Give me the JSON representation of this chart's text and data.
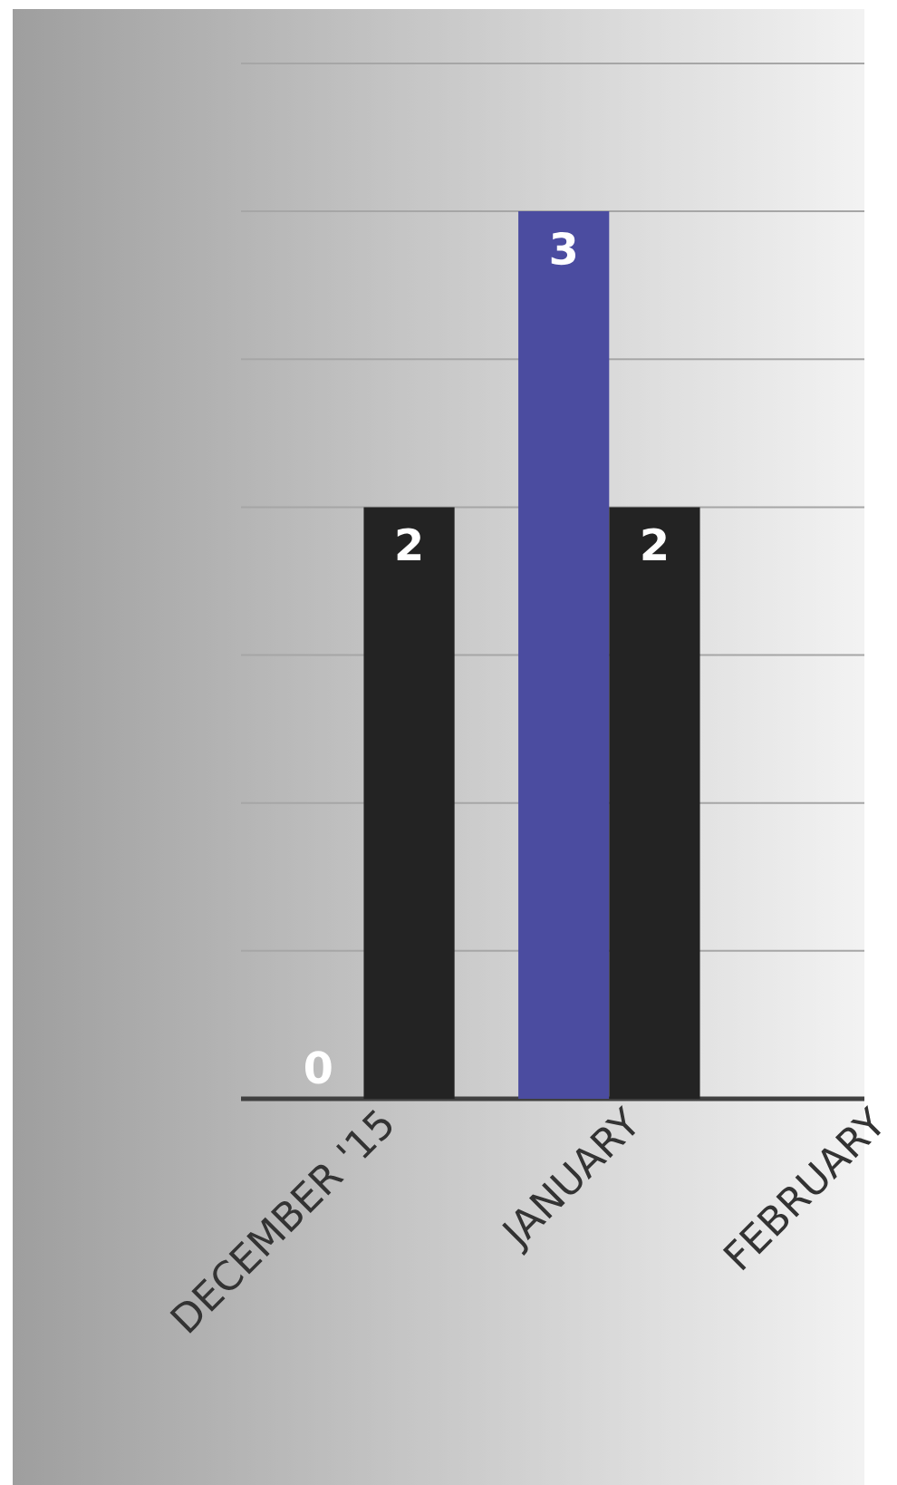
{
  "chart_data": {
    "type": "bar",
    "categories": [
      "DECEMBER '15",
      "JANUARY",
      "FEBRUARY"
    ],
    "series": [
      {
        "color": "#4b4ca0",
        "values": [
          0,
          3,
          null
        ]
      },
      {
        "color": "#232323",
        "values": [
          2,
          2,
          null
        ]
      }
    ],
    "ylim": [
      0,
      3.5
    ],
    "grid": "y",
    "tick_labels": "x",
    "data_labels": true
  }
}
